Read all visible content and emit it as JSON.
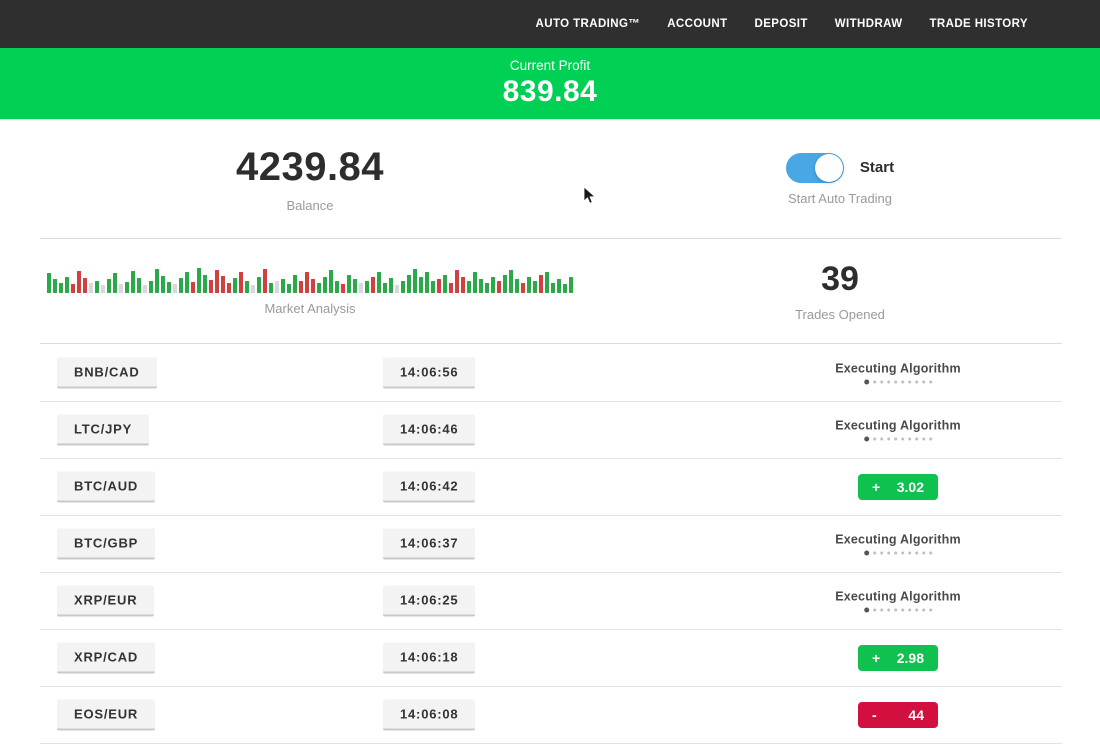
{
  "nav": {
    "items": [
      {
        "label": "AUTO TRADING™"
      },
      {
        "label": "ACCOUNT"
      },
      {
        "label": "DEPOSIT"
      },
      {
        "label": "WITHDRAW"
      },
      {
        "label": "TRADE HISTORY"
      }
    ]
  },
  "profit_banner": {
    "label": "Current Profit",
    "value": "839.84"
  },
  "stats": {
    "balance": {
      "value": "4239.84",
      "label": "Balance"
    },
    "auto_trading": {
      "toggle_state": "on",
      "toggle_label": "Start",
      "caption": "Start Auto Trading"
    },
    "market_analysis": {
      "label": "Market Analysis",
      "bar_colors": {
        "g": "#2ba84a",
        "r": "#d23f3f",
        "p": "#d9d9d9"
      },
      "bars": [
        [
          "g",
          20
        ],
        [
          "g",
          14
        ],
        [
          "g",
          10
        ],
        [
          "g",
          16
        ],
        [
          "r",
          9
        ],
        [
          "r",
          22
        ],
        [
          "r",
          15
        ],
        [
          "p",
          10
        ],
        [
          "g",
          12
        ],
        [
          "p",
          8
        ],
        [
          "g",
          14
        ],
        [
          "g",
          20
        ],
        [
          "p",
          9
        ],
        [
          "g",
          11
        ],
        [
          "g",
          22
        ],
        [
          "g",
          15
        ],
        [
          "p",
          8
        ],
        [
          "g",
          12
        ],
        [
          "g",
          24
        ],
        [
          "g",
          17
        ],
        [
          "g",
          11
        ],
        [
          "p",
          9
        ],
        [
          "g",
          15
        ],
        [
          "g",
          21
        ],
        [
          "r",
          11
        ],
        [
          "g",
          25
        ],
        [
          "g",
          18
        ],
        [
          "r",
          13
        ],
        [
          "r",
          23
        ],
        [
          "r",
          17
        ],
        [
          "r",
          10
        ],
        [
          "g",
          15
        ],
        [
          "r",
          21
        ],
        [
          "g",
          12
        ],
        [
          "p",
          8
        ],
        [
          "g",
          16
        ],
        [
          "r",
          24
        ],
        [
          "g",
          10
        ],
        [
          "p",
          12
        ],
        [
          "g",
          14
        ],
        [
          "g",
          9
        ],
        [
          "g",
          18
        ],
        [
          "r",
          12
        ],
        [
          "r",
          21
        ],
        [
          "r",
          14
        ],
        [
          "g",
          10
        ],
        [
          "g",
          16
        ],
        [
          "g",
          23
        ],
        [
          "g",
          12
        ],
        [
          "r",
          9
        ],
        [
          "g",
          18
        ],
        [
          "g",
          14
        ],
        [
          "p",
          10
        ],
        [
          "g",
          12
        ],
        [
          "r",
          16
        ],
        [
          "g",
          21
        ],
        [
          "g",
          10
        ],
        [
          "g",
          15
        ],
        [
          "p",
          8
        ],
        [
          "g",
          12
        ],
        [
          "g",
          18
        ],
        [
          "g",
          24
        ],
        [
          "g",
          16
        ],
        [
          "g",
          21
        ],
        [
          "g",
          12
        ],
        [
          "r",
          14
        ],
        [
          "g",
          18
        ],
        [
          "r",
          10
        ],
        [
          "r",
          23
        ],
        [
          "r",
          16
        ],
        [
          "g",
          12
        ],
        [
          "g",
          21
        ],
        [
          "g",
          14
        ],
        [
          "g",
          10
        ],
        [
          "g",
          16
        ],
        [
          "r",
          12
        ],
        [
          "g",
          18
        ],
        [
          "g",
          23
        ],
        [
          "g",
          14
        ],
        [
          "r",
          10
        ],
        [
          "g",
          16
        ],
        [
          "g",
          12
        ],
        [
          "r",
          18
        ],
        [
          "g",
          21
        ],
        [
          "g",
          10
        ],
        [
          "g",
          14
        ],
        [
          "g",
          9
        ],
        [
          "g",
          16
        ]
      ]
    },
    "trades_opened": {
      "value": "39",
      "label": "Trades Opened"
    }
  },
  "trades": {
    "executing_dots_count": 9,
    "rows": [
      {
        "pair": "BNB/CAD",
        "time": "14:06:56",
        "status": {
          "type": "executing",
          "label": "Executing Algorithm"
        }
      },
      {
        "pair": "LTC/JPY",
        "time": "14:06:46",
        "status": {
          "type": "executing",
          "label": "Executing Algorithm"
        }
      },
      {
        "pair": "BTC/AUD",
        "time": "14:06:42",
        "status": {
          "type": "profit",
          "sign": "+",
          "value": "3.02"
        }
      },
      {
        "pair": "BTC/GBP",
        "time": "14:06:37",
        "status": {
          "type": "executing",
          "label": "Executing Algorithm"
        }
      },
      {
        "pair": "XRP/EUR",
        "time": "14:06:25",
        "status": {
          "type": "executing",
          "label": "Executing Algorithm"
        }
      },
      {
        "pair": "XRP/CAD",
        "time": "14:06:18",
        "status": {
          "type": "profit",
          "sign": "+",
          "value": "2.98"
        }
      },
      {
        "pair": "EOS/EUR",
        "time": "14:06:08",
        "status": {
          "type": "loss",
          "sign": "-",
          "value": "44"
        }
      }
    ]
  },
  "colors": {
    "nav_bg": "#2f2f2f",
    "banner_green": "#00d053",
    "profit_green": "#0fc14e",
    "loss_red": "#d30f3f",
    "toggle_blue": "#47a8e5"
  }
}
